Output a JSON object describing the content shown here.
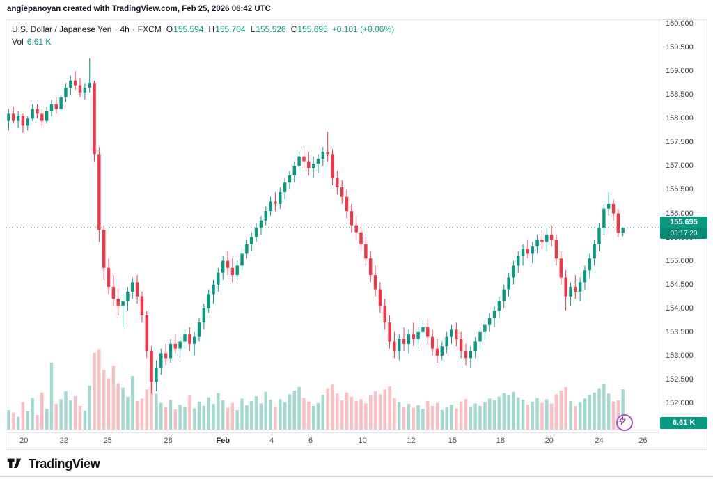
{
  "attribution": "angiepanoyan created with TradingView.com, Feb 25, 2026 06:42 UTC",
  "header": {
    "symbol_title": "U.S. Dollar / Japanese Yen",
    "separator": "·",
    "interval": "4h",
    "exchange": "FXCM",
    "ohlc": {
      "o_label": "O",
      "o": "155.594",
      "h_label": "H",
      "h": "155.704",
      "l_label": "L",
      "l": "155.526",
      "c_label": "C",
      "c": "155.695",
      "change": "+0.101 (+0.06%)"
    },
    "volume_label": "Vol",
    "volume_value": "6.61 K"
  },
  "last_price": {
    "value": "155.695",
    "countdown": "03:17:20",
    "price": 155.695
  },
  "volume_badge_value": "6.61 K",
  "logo_text": "TradingView",
  "colors": {
    "up": "#089981",
    "down": "#f23645",
    "up_volume": "rgba(8,153,129,0.38)",
    "down_volume": "rgba(242,54,69,0.32)",
    "badge": "#089981",
    "badge_dark": "#078a72",
    "line": "#089981",
    "accent_purple": "#a24dd8"
  },
  "chart_data": {
    "type": "candlestick",
    "title": "U.S. Dollar / Japanese Yen · 4h · FXCM",
    "symbol": "USD/JPY",
    "interval": "4h",
    "exchange": "FXCM",
    "legend_position": "top-left",
    "grid": false,
    "last": {
      "open": 155.594,
      "high": 155.704,
      "low": 155.526,
      "close": 155.695,
      "change": 0.101,
      "change_pct": 0.06,
      "volume_k": 6.61
    },
    "last_price_line": 155.695,
    "price_axis": {
      "min": 152.0,
      "max": 160.0,
      "step": 0.5,
      "labels": [
        "160.000",
        "159.500",
        "159.000",
        "158.500",
        "158.000",
        "157.500",
        "157.000",
        "156.500",
        "156.000",
        "155.500",
        "155.000",
        "154.500",
        "154.000",
        "153.500",
        "153.000",
        "152.500",
        "152.000"
      ]
    },
    "time_axis": [
      {
        "label": "20",
        "pos": 3.2
      },
      {
        "label": "22",
        "pos": 11.6
      },
      {
        "label": "25",
        "pos": 20.8
      },
      {
        "label": "28",
        "pos": 33.5
      },
      {
        "label": "Feb",
        "pos": 45.0,
        "bold": true
      },
      {
        "label": "4",
        "pos": 55.2
      },
      {
        "label": "6",
        "pos": 63.4
      },
      {
        "label": "10",
        "pos": 74.3
      },
      {
        "label": "12",
        "pos": 84.5
      },
      {
        "label": "15",
        "pos": 93.2
      },
      {
        "label": "18",
        "pos": 103.3
      },
      {
        "label": "20",
        "pos": 113.5
      },
      {
        "label": "24",
        "pos": 124.0
      },
      {
        "label": "26",
        "pos": 133.2
      }
    ],
    "slots": 137,
    "volume_axis_max_k": 13.5,
    "ohlcv_k": [
      [
        157.95,
        158.2,
        157.75,
        158.1,
        3.2
      ],
      [
        158.1,
        158.25,
        157.9,
        157.95,
        2.8
      ],
      [
        157.95,
        158.15,
        157.8,
        158.05,
        2.1
      ],
      [
        158.05,
        158.1,
        157.7,
        157.85,
        4.5
      ],
      [
        157.85,
        158.05,
        157.75,
        158.0,
        3.0
      ],
      [
        158.0,
        158.3,
        157.95,
        158.2,
        5.2
      ],
      [
        158.2,
        158.3,
        158.0,
        158.1,
        2.4
      ],
      [
        158.1,
        158.2,
        157.85,
        157.95,
        6.1
      ],
      [
        157.95,
        158.25,
        157.9,
        158.15,
        3.4
      ],
      [
        158.15,
        158.4,
        158.05,
        158.3,
        11.0
      ],
      [
        158.3,
        158.45,
        158.1,
        158.2,
        4.2
      ],
      [
        158.2,
        158.5,
        158.15,
        158.45,
        5.0
      ],
      [
        158.45,
        158.75,
        158.35,
        158.65,
        6.3
      ],
      [
        158.65,
        158.9,
        158.5,
        158.8,
        4.8
      ],
      [
        158.8,
        159.0,
        158.6,
        158.7,
        5.5
      ],
      [
        158.7,
        158.85,
        158.45,
        158.55,
        3.9
      ],
      [
        158.55,
        158.75,
        158.4,
        158.65,
        3.1
      ],
      [
        158.65,
        159.27,
        158.55,
        158.75,
        7.2
      ],
      [
        158.75,
        158.8,
        157.1,
        157.25,
        12.6
      ],
      [
        157.25,
        157.4,
        155.4,
        155.65,
        13.2
      ],
      [
        155.65,
        155.75,
        154.6,
        154.85,
        9.8
      ],
      [
        154.85,
        155.05,
        154.3,
        154.45,
        8.4
      ],
      [
        154.45,
        154.7,
        154.05,
        154.2,
        10.5
      ],
      [
        154.2,
        154.4,
        153.85,
        154.05,
        7.6
      ],
      [
        154.05,
        154.3,
        153.6,
        154.15,
        6.9
      ],
      [
        154.15,
        154.45,
        153.95,
        154.35,
        5.4
      ],
      [
        154.35,
        154.65,
        154.2,
        154.55,
        8.8
      ],
      [
        154.55,
        154.7,
        154.1,
        154.25,
        4.7
      ],
      [
        154.25,
        154.35,
        153.7,
        153.85,
        5.1
      ],
      [
        153.85,
        153.95,
        152.95,
        153.1,
        6.6
      ],
      [
        153.1,
        153.2,
        152.2,
        152.45,
        7.8
      ],
      [
        152.45,
        152.9,
        152.25,
        152.75,
        5.9
      ],
      [
        152.75,
        153.15,
        152.6,
        153.05,
        4.4
      ],
      [
        153.05,
        153.25,
        152.8,
        152.95,
        3.7
      ],
      [
        152.95,
        153.35,
        152.85,
        153.25,
        4.9
      ],
      [
        153.25,
        153.45,
        153.05,
        153.15,
        3.3
      ],
      [
        153.15,
        153.4,
        152.95,
        153.3,
        4.1
      ],
      [
        153.3,
        153.55,
        153.15,
        153.45,
        3.8
      ],
      [
        153.45,
        153.6,
        153.1,
        153.25,
        5.6
      ],
      [
        153.25,
        153.5,
        153.0,
        153.4,
        3.5
      ],
      [
        153.4,
        153.8,
        153.3,
        153.7,
        4.6
      ],
      [
        153.7,
        154.1,
        153.55,
        154.0,
        3.9
      ],
      [
        154.0,
        154.4,
        153.9,
        154.3,
        5.3
      ],
      [
        154.3,
        154.6,
        154.1,
        154.5,
        4.2
      ],
      [
        154.5,
        154.85,
        154.35,
        154.75,
        6.0
      ],
      [
        154.75,
        155.1,
        154.6,
        155.0,
        4.8
      ],
      [
        155.0,
        155.2,
        154.7,
        154.85,
        3.6
      ],
      [
        154.85,
        155.05,
        154.55,
        154.7,
        4.4
      ],
      [
        154.7,
        155.0,
        154.6,
        154.9,
        3.2
      ],
      [
        154.9,
        155.25,
        154.8,
        155.15,
        5.1
      ],
      [
        155.15,
        155.45,
        155.05,
        155.35,
        4.0
      ],
      [
        155.35,
        155.6,
        155.2,
        155.5,
        4.7
      ],
      [
        155.5,
        155.8,
        155.4,
        155.7,
        5.5
      ],
      [
        155.7,
        155.95,
        155.55,
        155.85,
        4.3
      ],
      [
        155.85,
        156.15,
        155.75,
        156.05,
        6.2
      ],
      [
        156.05,
        156.35,
        155.95,
        156.25,
        4.9
      ],
      [
        156.25,
        156.45,
        156.05,
        156.2,
        3.8
      ],
      [
        156.2,
        156.55,
        156.1,
        156.45,
        5.0
      ],
      [
        156.45,
        156.75,
        156.3,
        156.65,
        4.5
      ],
      [
        156.65,
        156.9,
        156.5,
        156.8,
        5.8
      ],
      [
        156.8,
        157.1,
        156.65,
        157.0,
        6.4
      ],
      [
        157.0,
        157.3,
        156.85,
        157.2,
        7.0
      ],
      [
        157.2,
        157.35,
        156.95,
        157.1,
        5.2
      ],
      [
        157.1,
        157.3,
        156.8,
        156.95,
        4.6
      ],
      [
        156.95,
        157.2,
        156.75,
        157.05,
        3.9
      ],
      [
        157.05,
        157.25,
        156.85,
        157.15,
        4.4
      ],
      [
        157.15,
        157.4,
        157.0,
        157.3,
        5.7
      ],
      [
        157.3,
        157.72,
        157.1,
        157.25,
        6.8
      ],
      [
        157.25,
        157.35,
        156.6,
        156.75,
        7.4
      ],
      [
        156.75,
        156.9,
        156.4,
        156.55,
        5.9
      ],
      [
        156.55,
        156.7,
        156.2,
        156.35,
        4.8
      ],
      [
        156.35,
        156.5,
        155.9,
        156.05,
        6.1
      ],
      [
        156.05,
        156.2,
        155.6,
        155.75,
        5.4
      ],
      [
        155.75,
        155.95,
        155.45,
        155.6,
        4.7
      ],
      [
        155.6,
        155.75,
        155.2,
        155.35,
        5.0
      ],
      [
        155.35,
        155.5,
        154.9,
        155.05,
        4.3
      ],
      [
        155.05,
        155.2,
        154.55,
        154.7,
        5.6
      ],
      [
        154.7,
        154.9,
        154.25,
        154.4,
        6.3
      ],
      [
        154.4,
        154.55,
        153.9,
        154.05,
        5.8
      ],
      [
        154.05,
        154.2,
        153.55,
        153.7,
        6.6
      ],
      [
        153.7,
        153.85,
        153.15,
        153.3,
        7.1
      ],
      [
        153.3,
        153.5,
        152.95,
        153.1,
        5.2
      ],
      [
        153.1,
        153.45,
        152.9,
        153.35,
        4.5
      ],
      [
        153.35,
        153.6,
        153.1,
        153.25,
        3.8
      ],
      [
        153.25,
        153.55,
        153.05,
        153.45,
        4.2
      ],
      [
        153.45,
        153.7,
        153.2,
        153.35,
        3.6
      ],
      [
        153.35,
        153.6,
        153.15,
        153.5,
        4.0
      ],
      [
        153.5,
        153.75,
        153.3,
        153.6,
        3.4
      ],
      [
        153.6,
        153.8,
        153.25,
        153.4,
        4.7
      ],
      [
        153.4,
        153.55,
        153.0,
        153.15,
        3.9
      ],
      [
        153.15,
        153.35,
        152.85,
        153.0,
        4.4
      ],
      [
        153.0,
        153.3,
        152.9,
        153.2,
        3.2
      ],
      [
        153.2,
        153.5,
        153.05,
        153.4,
        3.7
      ],
      [
        153.4,
        153.65,
        153.25,
        153.55,
        4.1
      ],
      [
        153.55,
        153.7,
        153.2,
        153.35,
        3.5
      ],
      [
        153.35,
        153.5,
        152.95,
        153.1,
        4.6
      ],
      [
        153.1,
        153.25,
        152.8,
        152.95,
        5.0
      ],
      [
        152.95,
        153.2,
        152.75,
        153.1,
        3.8
      ],
      [
        153.1,
        153.4,
        152.95,
        153.3,
        4.3
      ],
      [
        153.3,
        153.6,
        153.15,
        153.5,
        3.9
      ],
      [
        153.5,
        153.75,
        153.35,
        153.65,
        4.5
      ],
      [
        153.65,
        153.9,
        153.5,
        153.8,
        5.1
      ],
      [
        153.8,
        154.05,
        153.6,
        153.95,
        4.8
      ],
      [
        153.95,
        154.25,
        153.8,
        154.15,
        5.4
      ],
      [
        154.15,
        154.5,
        154.0,
        154.4,
        6.0
      ],
      [
        154.4,
        154.75,
        154.25,
        154.65,
        5.6
      ],
      [
        154.65,
        155.0,
        154.5,
        154.9,
        6.2
      ],
      [
        154.9,
        155.2,
        154.75,
        155.1,
        5.3
      ],
      [
        155.1,
        155.35,
        154.9,
        155.25,
        4.9
      ],
      [
        155.25,
        155.45,
        155.05,
        155.15,
        4.1
      ],
      [
        155.15,
        155.4,
        154.95,
        155.3,
        4.6
      ],
      [
        155.3,
        155.55,
        155.15,
        155.45,
        5.2
      ],
      [
        155.45,
        155.65,
        155.25,
        155.4,
        4.4
      ],
      [
        155.4,
        155.7,
        155.2,
        155.55,
        5.0
      ],
      [
        155.55,
        155.75,
        155.3,
        155.45,
        4.3
      ],
      [
        155.45,
        155.55,
        154.9,
        155.05,
        5.8
      ],
      [
        155.05,
        155.2,
        154.5,
        154.65,
        6.4
      ],
      [
        154.65,
        154.8,
        153.95,
        154.25,
        7.0
      ],
      [
        154.25,
        154.55,
        154.05,
        154.45,
        4.7
      ],
      [
        154.45,
        154.7,
        154.2,
        154.35,
        3.9
      ],
      [
        154.35,
        154.65,
        154.15,
        154.55,
        4.5
      ],
      [
        154.55,
        154.9,
        154.4,
        154.8,
        5.1
      ],
      [
        154.8,
        155.15,
        154.65,
        155.05,
        5.7
      ],
      [
        155.05,
        155.45,
        154.9,
        155.35,
        6.1
      ],
      [
        155.35,
        155.8,
        155.2,
        155.7,
        6.8
      ],
      [
        155.7,
        156.2,
        155.55,
        156.1,
        7.5
      ],
      [
        156.1,
        156.45,
        155.95,
        156.2,
        5.9
      ],
      [
        156.2,
        156.3,
        155.85,
        156.0,
        4.6
      ],
      [
        156.0,
        156.1,
        155.5,
        155.59,
        4.8
      ],
      [
        155.594,
        155.704,
        155.526,
        155.695,
        6.61
      ]
    ]
  }
}
